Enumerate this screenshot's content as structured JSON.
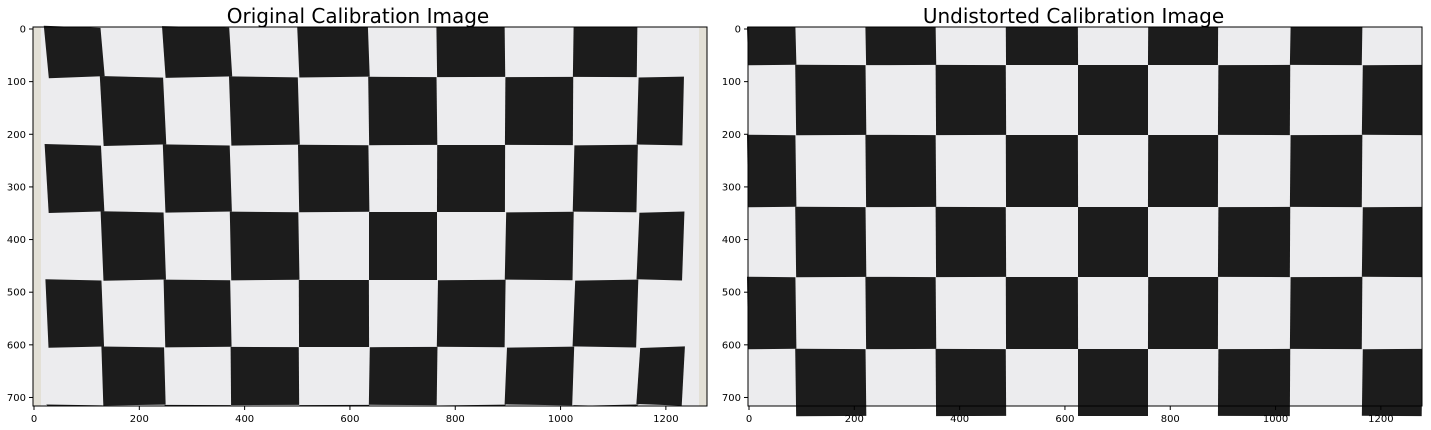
{
  "panels": [
    {
      "title": "Original Calibration Image",
      "y_ticks": [
        "0",
        "100",
        "200",
        "300",
        "400",
        "500",
        "600",
        "700"
      ],
      "x_ticks": [
        "0",
        "200",
        "400",
        "600",
        "800",
        "1000",
        "1200"
      ]
    },
    {
      "title": "Undistorted Calibration Image",
      "y_ticks": [
        "0",
        "100",
        "200",
        "300",
        "400",
        "500",
        "600",
        "700"
      ],
      "x_ticks": [
        "0",
        "200",
        "400",
        "600",
        "800",
        "1000",
        "1200"
      ]
    }
  ],
  "colors": {
    "dark_square": "#1c1c1c",
    "light_square": "#ececee",
    "paper_edge": "#e3e0d6",
    "axis": "#000000"
  }
}
